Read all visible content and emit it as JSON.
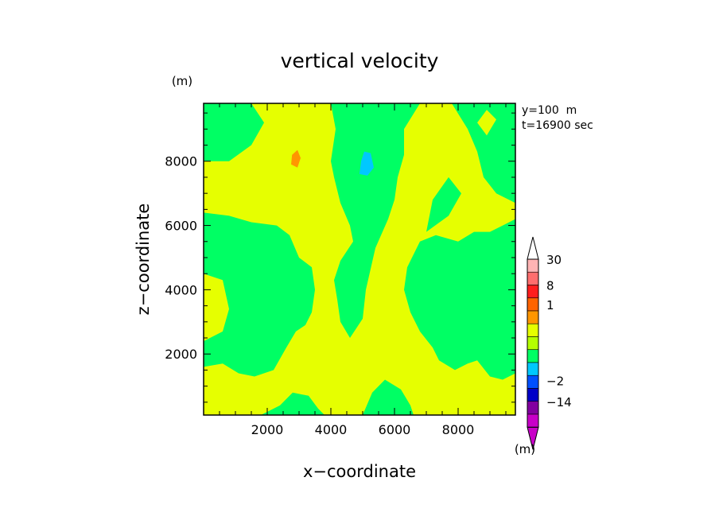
{
  "chart_data": {
    "type": "heatmap",
    "title": "vertical velocity",
    "xlabel": "x−coordinate",
    "ylabel": "z−coordinate",
    "x_unit": "(m)",
    "y_unit": "(m)",
    "annotation_lines": [
      "y=100  m",
      "t=16900 sec"
    ],
    "xlim": [
      0,
      9800
    ],
    "ylim": [
      100,
      9800
    ],
    "xticks": [
      2000,
      4000,
      6000,
      8000
    ],
    "yticks": [
      2000,
      4000,
      6000,
      8000
    ],
    "xtick_labels": [
      "2000",
      "4000",
      "6000",
      "8000"
    ],
    "ytick_labels": [
      "2000",
      "4000",
      "6000",
      "8000"
    ],
    "colorbar": {
      "unit": "(m)",
      "labels": [
        "30",
        "8",
        "1",
        "−2",
        "−14"
      ],
      "label_levels": [
        30,
        8,
        1,
        -2,
        -14
      ],
      "levels": [
        -30,
        -14,
        -8,
        -2,
        -1,
        -0.5,
        0,
        0.5,
        1,
        2,
        8,
        14,
        30
      ],
      "colors": [
        "#c800c8",
        "#8200a0",
        "#0000c8",
        "#0050ff",
        "#00c8ff",
        "#00ff64",
        "#b4ff00",
        "#e6ff00",
        "#ff9600",
        "#ff6400",
        "#ff1e1e",
        "#ff6e6e",
        "#ffb4b4"
      ],
      "extends": "both"
    },
    "field": {
      "background_color": "#00ff64",
      "regions": [
        {
          "value": 0.25,
          "color": "#e6ff00",
          "polygon": [
            [
              1500,
              9800
            ],
            [
              2500,
              9800
            ],
            [
              3500,
              9800
            ],
            [
              4000,
              9800
            ],
            [
              4150,
              9000
            ],
            [
              4000,
              8000
            ],
            [
              4100,
              7500
            ],
            [
              4300,
              6700
            ],
            [
              4600,
              6000
            ],
            [
              4700,
              5500
            ],
            [
              4300,
              4900
            ],
            [
              4100,
              4300
            ],
            [
              4200,
              3700
            ],
            [
              4300,
              3000
            ],
            [
              4600,
              2500
            ],
            [
              5000,
              3100
            ],
            [
              5100,
              4000
            ],
            [
              5400,
              5300
            ],
            [
              5800,
              6200
            ],
            [
              6000,
              6800
            ],
            [
              6100,
              7500
            ],
            [
              6300,
              8200
            ],
            [
              6300,
              9000
            ],
            [
              6800,
              9800
            ],
            [
              7800,
              9800
            ],
            [
              8300,
              9000
            ],
            [
              8600,
              8300
            ],
            [
              8800,
              7500
            ],
            [
              9200,
              7000
            ],
            [
              9600,
              6800
            ],
            [
              9800,
              6700
            ],
            [
              9800,
              6200
            ],
            [
              9400,
              6000
            ],
            [
              9000,
              5800
            ],
            [
              8500,
              5800
            ],
            [
              8000,
              5500
            ],
            [
              7300,
              5700
            ],
            [
              6800,
              5500
            ],
            [
              6400,
              4700
            ],
            [
              6300,
              4000
            ],
            [
              6500,
              3300
            ],
            [
              6800,
              2700
            ],
            [
              7200,
              2200
            ],
            [
              7400,
              1800
            ],
            [
              7900,
              1500
            ],
            [
              8300,
              1700
            ],
            [
              8600,
              1800
            ],
            [
              9000,
              1300
            ],
            [
              9400,
              1200
            ],
            [
              9800,
              1400
            ],
            [
              9800,
              100
            ],
            [
              300,
              100
            ],
            [
              0,
              100
            ],
            [
              0,
              1600
            ],
            [
              600,
              1700
            ],
            [
              1100,
              1400
            ],
            [
              1600,
              1300
            ],
            [
              2200,
              1500
            ],
            [
              2600,
              2200
            ],
            [
              2900,
              2700
            ],
            [
              3200,
              2900
            ],
            [
              3400,
              3300
            ],
            [
              3500,
              4000
            ],
            [
              3400,
              4700
            ],
            [
              3000,
              5000
            ],
            [
              2700,
              5700
            ],
            [
              2300,
              6000
            ],
            [
              1500,
              6100
            ],
            [
              800,
              6300
            ],
            [
              0,
              6400
            ],
            [
              0,
              8000
            ],
            [
              800,
              8000
            ],
            [
              1500,
              8500
            ],
            [
              1900,
              9200
            ]
          ]
        },
        {
          "value": 0.25,
          "color": "#e6ff00",
          "polygon": [
            [
              0,
              2400
            ],
            [
              600,
              2700
            ],
            [
              800,
              3400
            ],
            [
              600,
              4300
            ],
            [
              0,
              4500
            ]
          ]
        },
        {
          "value": -0.25,
          "color": "#00ff64",
          "polygon": [
            [
              1800,
              100
            ],
            [
              2400,
              400
            ],
            [
              2800,
              800
            ],
            [
              3300,
              700
            ],
            [
              3600,
              300
            ],
            [
              3800,
              100
            ]
          ]
        },
        {
          "value": -0.25,
          "color": "#00ff64",
          "polygon": [
            [
              5000,
              100
            ],
            [
              5300,
              800
            ],
            [
              5700,
              1200
            ],
            [
              6200,
              900
            ],
            [
              6500,
              400
            ],
            [
              6600,
              100
            ]
          ]
        },
        {
          "value": -0.25,
          "color": "#00ff64",
          "polygon": [
            [
              7000,
              5800
            ],
            [
              7700,
              6300
            ],
            [
              8100,
              7000
            ],
            [
              7700,
              7500
            ],
            [
              7200,
              6800
            ]
          ]
        },
        {
          "value": -0.25,
          "color": "#00ff64",
          "polygon": [
            [
              1800,
              3600
            ],
            [
              2500,
              3400
            ],
            [
              2800,
              3800
            ],
            [
              2300,
              4300
            ]
          ]
        },
        {
          "value": -0.25,
          "color": "#00ff64",
          "polygon": [
            [
              7500,
              3700
            ],
            [
              8000,
              3400
            ],
            [
              8300,
              3900
            ],
            [
              7800,
              4400
            ]
          ]
        },
        {
          "value": 0.25,
          "color": "#e6ff00",
          "polygon": [
            [
              3500,
              1900
            ],
            [
              3900,
              1600
            ],
            [
              4200,
              2000
            ],
            [
              3800,
              2300
            ]
          ]
        },
        {
          "value": 0.25,
          "color": "#e6ff00",
          "polygon": [
            [
              8600,
              9200
            ],
            [
              8900,
              8800
            ],
            [
              9200,
              9300
            ],
            [
              8900,
              9600
            ]
          ]
        },
        {
          "value": 0.75,
          "color": "#ff9600",
          "polygon": [
            [
              2750,
              7900
            ],
            [
              2950,
              7800
            ],
            [
              3050,
              8100
            ],
            [
              2950,
              8350
            ],
            [
              2780,
              8200
            ]
          ]
        },
        {
          "value": -0.75,
          "color": "#00c8ff",
          "polygon": [
            [
              4900,
              7600
            ],
            [
              5150,
              7550
            ],
            [
              5350,
              7800
            ],
            [
              5250,
              8250
            ],
            [
              5050,
              8300
            ],
            [
              4950,
              8000
            ]
          ]
        }
      ]
    }
  }
}
